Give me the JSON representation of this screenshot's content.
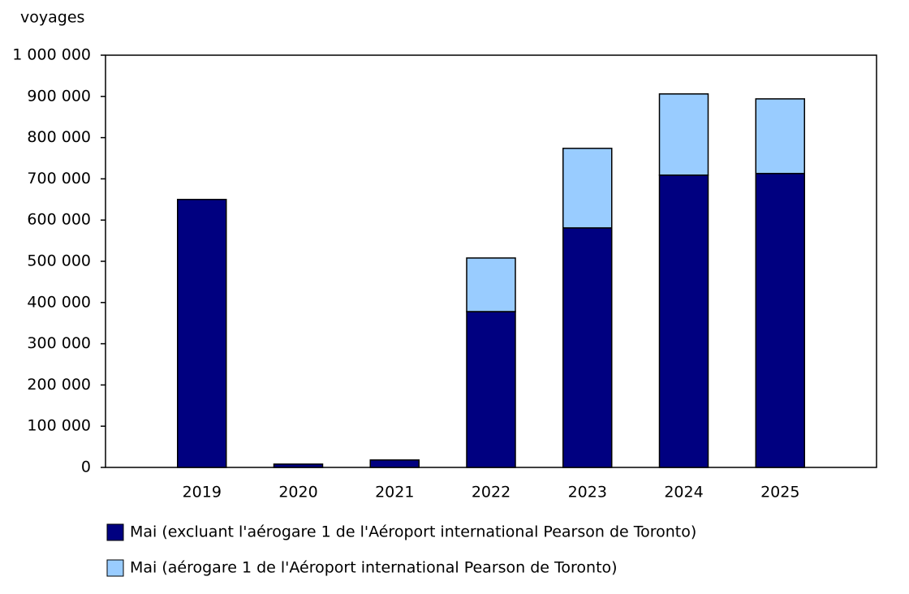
{
  "chart_data": {
    "type": "stacked-bar",
    "y_label": "voyages",
    "categories": [
      "2019",
      "2020",
      "2021",
      "2022",
      "2023",
      "2024",
      "2025"
    ],
    "series": [
      {
        "name": "Mai (excluant l'aérogare 1 de l'Aéroport international Pearson de Toronto)",
        "color": "#000080",
        "values": [
          650000,
          8000,
          18000,
          378000,
          581000,
          709000,
          713000
        ]
      },
      {
        "name": "Mai (aérogare 1 de l'Aéroport international Pearson de Toronto)",
        "color": "#99ccff",
        "values": [
          null,
          null,
          null,
          130000,
          193000,
          197000,
          181000
        ]
      }
    ],
    "ylim": [
      0,
      1000000
    ],
    "yticks": [
      0,
      {
        "value": 100000,
        "label": "100 000"
      },
      {
        "value": 200000,
        "label": "200 000"
      },
      {
        "value": 300000,
        "label": "300 000"
      },
      {
        "value": 400000,
        "label": "400 000"
      },
      {
        "value": 500000,
        "label": "500 000"
      },
      {
        "value": 600000,
        "label": "600 000"
      },
      {
        "value": 700000,
        "label": "700 000"
      },
      {
        "value": 800000,
        "label": "800 000"
      },
      {
        "value": 900000,
        "label": "900 000"
      },
      {
        "value": 1000000,
        "label": "1 000 000"
      }
    ]
  }
}
